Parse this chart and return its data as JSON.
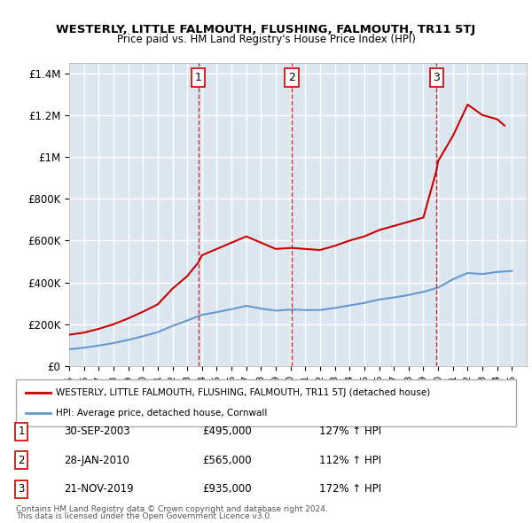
{
  "title": "WESTERLY, LITTLE FALMOUTH, FLUSHING, FALMOUTH, TR11 5TJ",
  "subtitle": "Price paid vs. HM Land Registry's House Price Index (HPI)",
  "legend_red": "WESTERLY, LITTLE FALMOUTH, FLUSHING, FALMOUTH, TR11 5TJ (detached house)",
  "legend_blue": "HPI: Average price, detached house, Cornwall",
  "footer1": "Contains HM Land Registry data © Crown copyright and database right 2024.",
  "footer2": "This data is licensed under the Open Government Licence v3.0.",
  "sales": [
    {
      "num": 1,
      "date": "30-SEP-2003",
      "price": "£495,000",
      "hpi": "127% ↑ HPI",
      "year": 2003.75
    },
    {
      "num": 2,
      "date": "28-JAN-2010",
      "price": "£565,000",
      "hpi": "112% ↑ HPI",
      "year": 2010.08
    },
    {
      "num": 3,
      "date": "21-NOV-2019",
      "price": "£935,000",
      "hpi": "172% ↑ HPI",
      "year": 2019.89
    }
  ],
  "sale_values": [
    495000,
    565000,
    935000
  ],
  "ylim": [
    0,
    1450000
  ],
  "xlim_start": 1995,
  "xlim_end": 2026,
  "background_color": "#dce6f0",
  "plot_bg": "#dce6f0",
  "grid_color": "#ffffff",
  "red_color": "#cc0000",
  "blue_color": "#6699cc"
}
